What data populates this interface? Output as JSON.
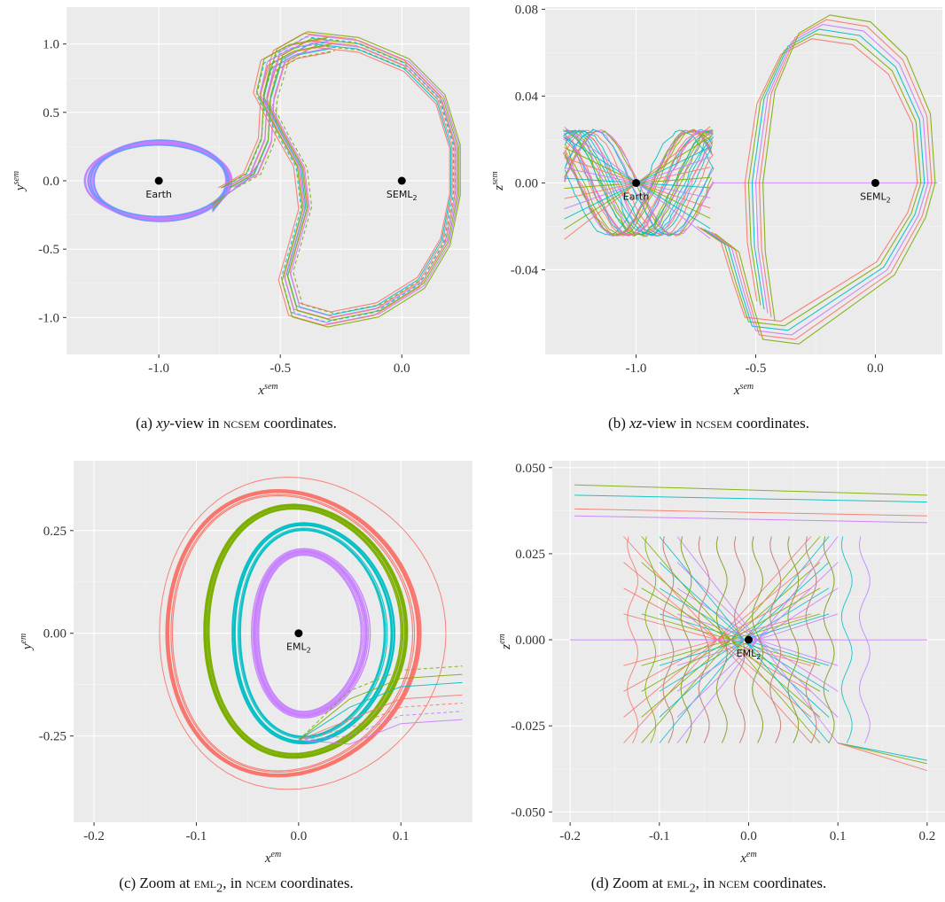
{
  "panels": [
    {
      "id": "a",
      "caption_prefix": "(a) ",
      "caption_view": "xy",
      "caption_mid": "-view in ",
      "caption_sc": "ncsem",
      "caption_suffix": " coordinates.",
      "xlabel": "x",
      "xlabel_sup": "sem",
      "ylabel": "y",
      "ylabel_sup": "sem",
      "points": [
        {
          "x": -1.0,
          "y": 0.0,
          "label": "Earth",
          "sub": ""
        },
        {
          "x": 0.0,
          "y": 0.0,
          "label": "SEML",
          "sub": "2"
        }
      ]
    },
    {
      "id": "b",
      "caption_prefix": "(b) ",
      "caption_view": "xz",
      "caption_mid": "-view in ",
      "caption_sc": "ncsem",
      "caption_suffix": " coordinates.",
      "xlabel": "x",
      "xlabel_sup": "sem",
      "ylabel": "z",
      "ylabel_sup": "sem",
      "points": [
        {
          "x": -1.0,
          "y": 0.0,
          "label": "Earth",
          "sub": ""
        },
        {
          "x": 0.0,
          "y": 0.0,
          "label": "SEML",
          "sub": "2"
        }
      ]
    },
    {
      "id": "c",
      "caption_prefix": "(c) Zoom at ",
      "caption_view": "",
      "caption_mid": "",
      "caption_sc": "eml",
      "caption_sub": "2",
      "caption_mid2": ", in ",
      "caption_sc2": "ncem",
      "caption_suffix": " coordinates.",
      "xlabel": "x",
      "xlabel_sup": "em",
      "ylabel": "y",
      "ylabel_sup": "em",
      "points": [
        {
          "x": 0.0,
          "y": 0.0,
          "label": "EML",
          "sub": "2"
        }
      ]
    },
    {
      "id": "d",
      "caption_prefix": "(d) Zoom at ",
      "caption_view": "",
      "caption_mid": "",
      "caption_sc": "eml",
      "caption_sub": "2",
      "caption_mid2": ", in ",
      "caption_sc2": "ncem",
      "caption_suffix": " coordinates.",
      "xlabel": "x",
      "xlabel_sup": "em",
      "ylabel": "z",
      "ylabel_sup": "em",
      "points": [
        {
          "x": 0.0,
          "y": 0.0,
          "label": "EML",
          "sub": "2"
        }
      ]
    }
  ],
  "chart_data": [
    {
      "type": "line",
      "panel": "a",
      "xlim": [
        -1.38,
        0.28
      ],
      "ylim": [
        -1.27,
        1.27
      ],
      "xticks": [
        -1.0,
        -0.5,
        0.0
      ],
      "xtick_labels": [
        "-1.0",
        "-0.5",
        "0.0"
      ],
      "yticks": [
        -1.0,
        -0.5,
        0.0,
        0.5,
        1.0
      ],
      "ytick_labels": [
        "-1.0",
        "-0.5",
        "0.0",
        "0.5",
        "1.0"
      ],
      "grid": true,
      "colors": [
        "#F8766D",
        "#7CAE00",
        "#00BFC4",
        "#C77CFF"
      ]
    },
    {
      "type": "line",
      "panel": "b",
      "xlim": [
        -1.38,
        0.28
      ],
      "ylim": [
        -0.079,
        0.081
      ],
      "xticks": [
        -1.0,
        -0.5,
        0.0
      ],
      "xtick_labels": [
        "-1.0",
        "-0.5",
        "0.0"
      ],
      "yticks": [
        -0.04,
        0.0,
        0.04,
        0.08
      ],
      "ytick_labels": [
        "-0.04",
        "0.00",
        "0.04",
        "0.08"
      ],
      "grid": true,
      "colors": [
        "#F8766D",
        "#7CAE00",
        "#00BFC4",
        "#C77CFF"
      ]
    },
    {
      "type": "line",
      "panel": "c",
      "xlim": [
        -0.22,
        0.17
      ],
      "ylim": [
        -0.46,
        0.42
      ],
      "xticks": [
        -0.2,
        -0.1,
        0.0,
        0.1
      ],
      "xtick_labels": [
        "-0.2",
        "-0.1",
        "0.0",
        "0.1"
      ],
      "yticks": [
        -0.25,
        0.0,
        0.25
      ],
      "ytick_labels": [
        "-0.25",
        "0.00",
        "0.25"
      ],
      "grid": true,
      "colors": [
        "#F8766D",
        "#7CAE00",
        "#00BFC4",
        "#C77CFF"
      ]
    },
    {
      "type": "line",
      "panel": "d",
      "xlim": [
        -0.22,
        0.22
      ],
      "ylim": [
        -0.053,
        0.052
      ],
      "xticks": [
        -0.2,
        -0.1,
        0.0,
        0.1,
        0.2
      ],
      "xtick_labels": [
        "-0.2",
        "-0.1",
        "0.0",
        "0.1",
        "0.2"
      ],
      "yticks": [
        -0.05,
        -0.025,
        0.0,
        0.025,
        0.05
      ],
      "ytick_labels": [
        "-0.050",
        "-0.025",
        "0.000",
        "0.025",
        "0.050"
      ],
      "grid": true,
      "colors": [
        "#F8766D",
        "#7CAE00",
        "#00BFC4",
        "#C77CFF"
      ]
    }
  ]
}
